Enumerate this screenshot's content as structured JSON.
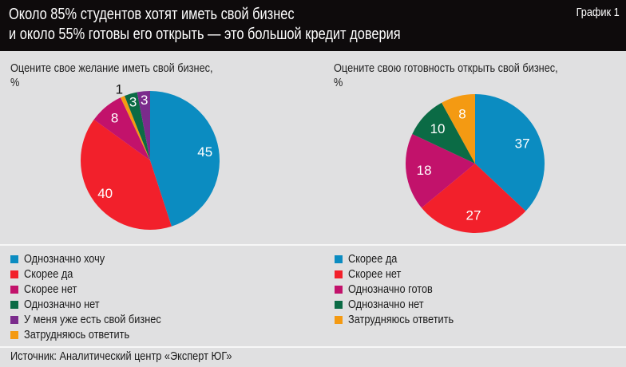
{
  "header": {
    "title_line1": "Около 85% студентов хотят иметь свой бизнес",
    "title_line2": "и около 55% готовы его открыть — это большой кредит доверия",
    "tag": "График 1"
  },
  "source": "Источник: Аналитический центр «Эксперт ЮГ»",
  "chart_data": [
    {
      "type": "pie",
      "title_line1": "Оцените свое желание иметь свой бизнес,",
      "title_line2": "%",
      "categories": [
        "Однозначно хочу",
        "Скорее да",
        "Скорее нет",
        "Затрудняюсь ответить",
        "Однозначно нет",
        "У меня уже есть свой бизнес"
      ],
      "values": [
        45,
        40,
        8,
        1,
        3,
        3
      ],
      "colors": [
        "#0b8cc1",
        "#f2202b",
        "#c2126b",
        "#f49a12",
        "#0b6b45",
        "#7b2b8c"
      ],
      "legend": [
        {
          "label": "Однозначно хочу",
          "color": "#0b8cc1"
        },
        {
          "label": "Скорее да",
          "color": "#f2202b"
        },
        {
          "label": "Скорее нет",
          "color": "#c2126b"
        },
        {
          "label": "Однозначно нет",
          "color": "#0b6b45"
        },
        {
          "label": "У меня уже есть свой бизнес",
          "color": "#7b2b8c"
        },
        {
          "label": "Затрудняюсь ответить",
          "color": "#f49a12"
        }
      ]
    },
    {
      "type": "pie",
      "title_line1": "Оцените свою готовность открыть свой бизнес,",
      "title_line2": "%",
      "categories": [
        "Скорее да",
        "Скорее нет",
        "Однозначно готов",
        "Однозначно нет",
        "Затрудняюсь ответить"
      ],
      "values": [
        37,
        27,
        18,
        10,
        8
      ],
      "colors": [
        "#0b8cc1",
        "#f2202b",
        "#c2126b",
        "#0b6b45",
        "#f49a12"
      ],
      "legend": [
        {
          "label": "Скорее да",
          "color": "#0b8cc1"
        },
        {
          "label": "Скорее нет",
          "color": "#f2202b"
        },
        {
          "label": "Однозначно готов",
          "color": "#c2126b"
        },
        {
          "label": "Однозначно нет",
          "color": "#0b6b45"
        },
        {
          "label": "Затрудняюсь ответить",
          "color": "#f49a12"
        }
      ]
    }
  ]
}
